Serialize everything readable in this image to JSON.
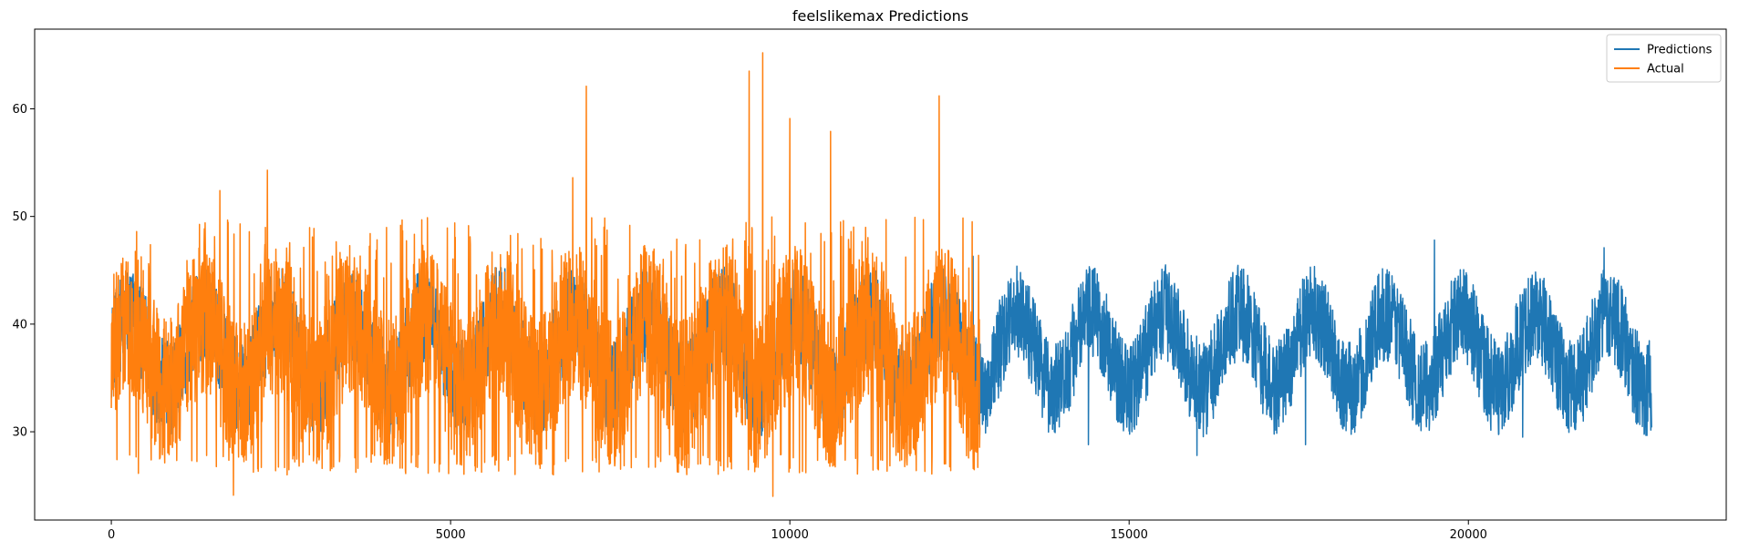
{
  "chart_data": {
    "type": "line",
    "title": "feelslikemax Predictions",
    "xlabel": "",
    "ylabel": "",
    "xlim": [
      -1130,
      23800
    ],
    "ylim": [
      21.8,
      67.4
    ],
    "x_ticks": [
      0,
      5000,
      10000,
      15000,
      20000
    ],
    "y_ticks": [
      30,
      40,
      50,
      60
    ],
    "grid": false,
    "legend_position": "top-right",
    "series": [
      {
        "name": "Predictions",
        "color": "#1f77b4",
        "x_range": [
          0,
          22700
        ],
        "baseline_mean": 37.5,
        "amplitude_range": [
          27.8,
          47.8
        ],
        "notable_points": [
          {
            "x": 12700,
            "y": 46.3
          },
          {
            "x": 14400,
            "y": 28.8
          },
          {
            "x": 16000,
            "y": 27.8
          },
          {
            "x": 17600,
            "y": 28.8
          },
          {
            "x": 19500,
            "y": 47.8
          },
          {
            "x": 20800,
            "y": 29.5
          },
          {
            "x": 22000,
            "y": 47.1
          },
          {
            "x": 22700,
            "y": 30.4
          }
        ]
      },
      {
        "name": "Actual",
        "color": "#ff7f0e",
        "x_range": [
          0,
          12800
        ],
        "baseline_mean": 37.0,
        "amplitude_range": [
          24.0,
          65.2
        ],
        "notable_points": [
          {
            "x": 1600,
            "y": 52.4
          },
          {
            "x": 1800,
            "y": 24.1
          },
          {
            "x": 2300,
            "y": 54.3
          },
          {
            "x": 6800,
            "y": 53.6
          },
          {
            "x": 7000,
            "y": 62.1
          },
          {
            "x": 9400,
            "y": 63.5
          },
          {
            "x": 9600,
            "y": 65.2
          },
          {
            "x": 9750,
            "y": 24.0
          },
          {
            "x": 10000,
            "y": 59.1
          },
          {
            "x": 10600,
            "y": 57.9
          },
          {
            "x": 12200,
            "y": 61.2
          }
        ]
      }
    ]
  }
}
